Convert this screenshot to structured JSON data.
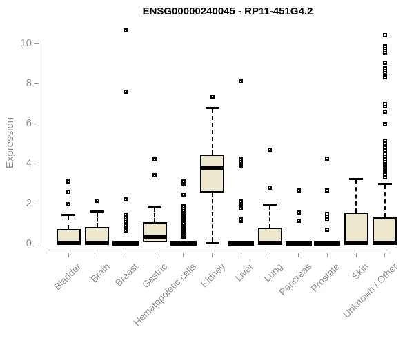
{
  "chart_data": {
    "type": "boxplot",
    "title": "ENSG00000240045 - RP11-451G4.2",
    "xlabel": "",
    "ylabel": "Expression",
    "ylim": [
      0,
      10
    ],
    "yticks": [
      0,
      2,
      4,
      6,
      8,
      10
    ],
    "grid": false,
    "legend": "none",
    "categories": [
      "Bladder",
      "Brain",
      "Breast",
      "Gastric",
      "Hematopoietic cells",
      "Kidney",
      "Liver",
      "Lung",
      "Pancreas",
      "Prostate",
      "Skin",
      "Unknown / Other"
    ],
    "series": [
      {
        "name": "Bladder",
        "q1": 0,
        "median": 0.05,
        "q3": 0.72,
        "whisker_high": 1.45,
        "whisker_low": null,
        "outliers": [
          1.95,
          2.6,
          3.1
        ]
      },
      {
        "name": "Brain",
        "q1": 0,
        "median": 0.05,
        "q3": 0.82,
        "whisker_high": 1.63,
        "whisker_low": null,
        "outliers": [
          2.15
        ]
      },
      {
        "name": "Breast",
        "q1": null,
        "median": 0.03,
        "q3": null,
        "whisker_high": null,
        "whisker_low": null,
        "outliers": [
          0.65,
          0.9,
          1.1,
          1.2,
          1.3,
          1.45,
          2.2,
          7.6,
          10.65
        ]
      },
      {
        "name": "Gastric",
        "q1": 0.07,
        "median": 0.35,
        "q3": 1.08,
        "whisker_high": 1.85,
        "whisker_low": null,
        "outliers": [
          3.4,
          4.2
        ]
      },
      {
        "name": "Hematopoietic cells",
        "q1": null,
        "median": 0.03,
        "q3": null,
        "whisker_high": null,
        "whisker_low": null,
        "outliers": [
          0.35,
          0.45,
          0.55,
          0.65,
          0.7,
          0.8,
          0.9,
          0.95,
          1.05,
          1.15,
          1.25,
          1.35,
          1.45,
          1.55,
          1.65,
          1.75,
          1.85,
          2.45,
          3.0,
          3.1
        ]
      },
      {
        "name": "Kidney",
        "q1": 2.55,
        "median": 3.8,
        "q3": 4.45,
        "whisker_high": 6.8,
        "whisker_low": 0.02,
        "outliers": [
          7.35
        ]
      },
      {
        "name": "Liver",
        "q1": null,
        "median": 0.03,
        "q3": null,
        "whisker_high": null,
        "whisker_low": null,
        "outliers": [
          1.15,
          1.2,
          1.75,
          1.9,
          2.0,
          2.1,
          3.9,
          4.0,
          4.1,
          4.2,
          8.1
        ]
      },
      {
        "name": "Lung",
        "q1": 0,
        "median": 0.05,
        "q3": 0.78,
        "whisker_high": 1.95,
        "whisker_low": null,
        "outliers": [
          2.8,
          4.7
        ]
      },
      {
        "name": "Pancreas",
        "q1": null,
        "median": 0.03,
        "q3": null,
        "whisker_high": null,
        "whisker_low": null,
        "outliers": [
          1.15,
          1.55,
          2.65
        ]
      },
      {
        "name": "Prostate",
        "q1": null,
        "median": 0.03,
        "q3": null,
        "whisker_high": null,
        "whisker_low": null,
        "outliers": [
          0.7,
          1.2,
          1.35,
          1.5,
          2.65,
          4.25
        ]
      },
      {
        "name": "Skin",
        "q1": 0,
        "median": 0.05,
        "q3": 1.55,
        "whisker_high": 3.25,
        "whisker_low": null,
        "outliers": []
      },
      {
        "name": "Unknown / Other",
        "q1": 0,
        "median": 0.05,
        "q3": 1.3,
        "whisker_high": 3.0,
        "whisker_low": null,
        "outliers": [
          3.3,
          3.4,
          3.5,
          3.6,
          3.7,
          3.8,
          3.9,
          4.0,
          4.1,
          4.2,
          4.35,
          4.5,
          4.65,
          4.8,
          5.0,
          5.15,
          5.95,
          6.6,
          6.85,
          6.95,
          8.3,
          8.55,
          8.65,
          8.75,
          9.05,
          9.55,
          9.65,
          9.75,
          9.85,
          10.4
        ]
      }
    ],
    "colors": {
      "box_fill": "#EDE8CD",
      "box_border": "#000000",
      "median": "#000000",
      "outlier": "#000000",
      "axis_line": "#9A9A9A",
      "axis_text": "#909090",
      "title_text": "#000000",
      "background": "#FFFFFF"
    }
  }
}
